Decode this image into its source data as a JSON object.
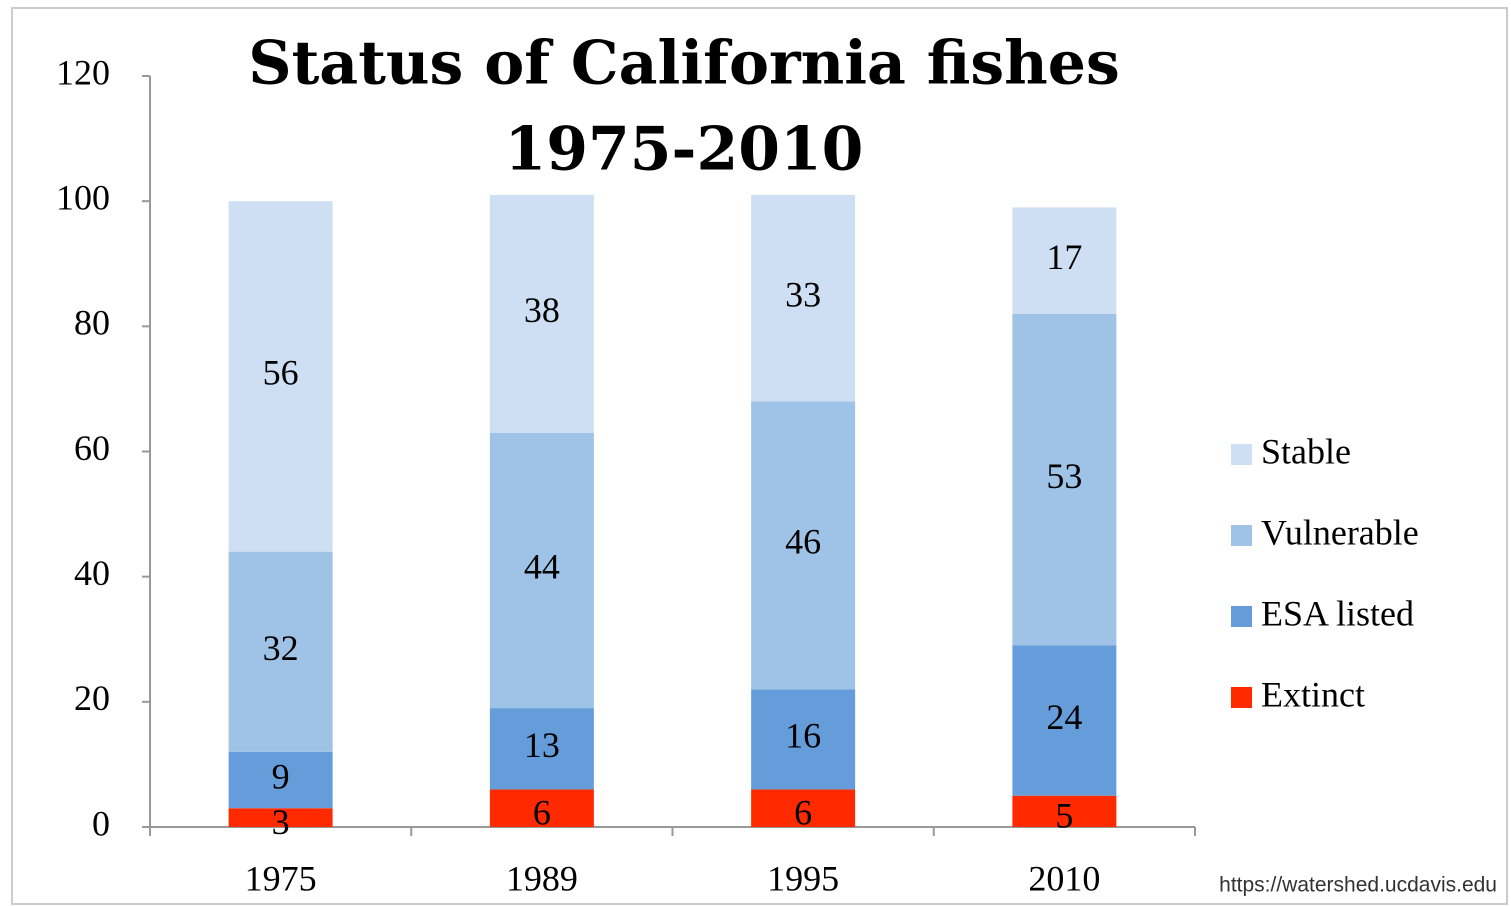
{
  "chart_data": {
    "type": "stacked_bar",
    "title": "Status of California fishes",
    "subtitle": "1975-2010",
    "source": "https://watershed.ucdavis.edu",
    "categories": [
      "1975",
      "1989",
      "1995",
      "2010"
    ],
    "series": [
      {
        "name": "Extinct",
        "color": "#ff2a00",
        "values": [
          3,
          6,
          6,
          5
        ]
      },
      {
        "name": "ESA listed",
        "color": "#659ddb",
        "values": [
          9,
          13,
          16,
          24
        ]
      },
      {
        "name": "Vulnerable",
        "color": "#9fc2e7",
        "values": [
          32,
          44,
          46,
          53
        ]
      },
      {
        "name": "Stable",
        "color": "#cfdff3",
        "values": [
          56,
          38,
          33,
          17
        ]
      }
    ],
    "ylim": [
      0,
      120
    ],
    "yticks": [
      0,
      20,
      40,
      60,
      80,
      100,
      120
    ],
    "legend": "right"
  }
}
